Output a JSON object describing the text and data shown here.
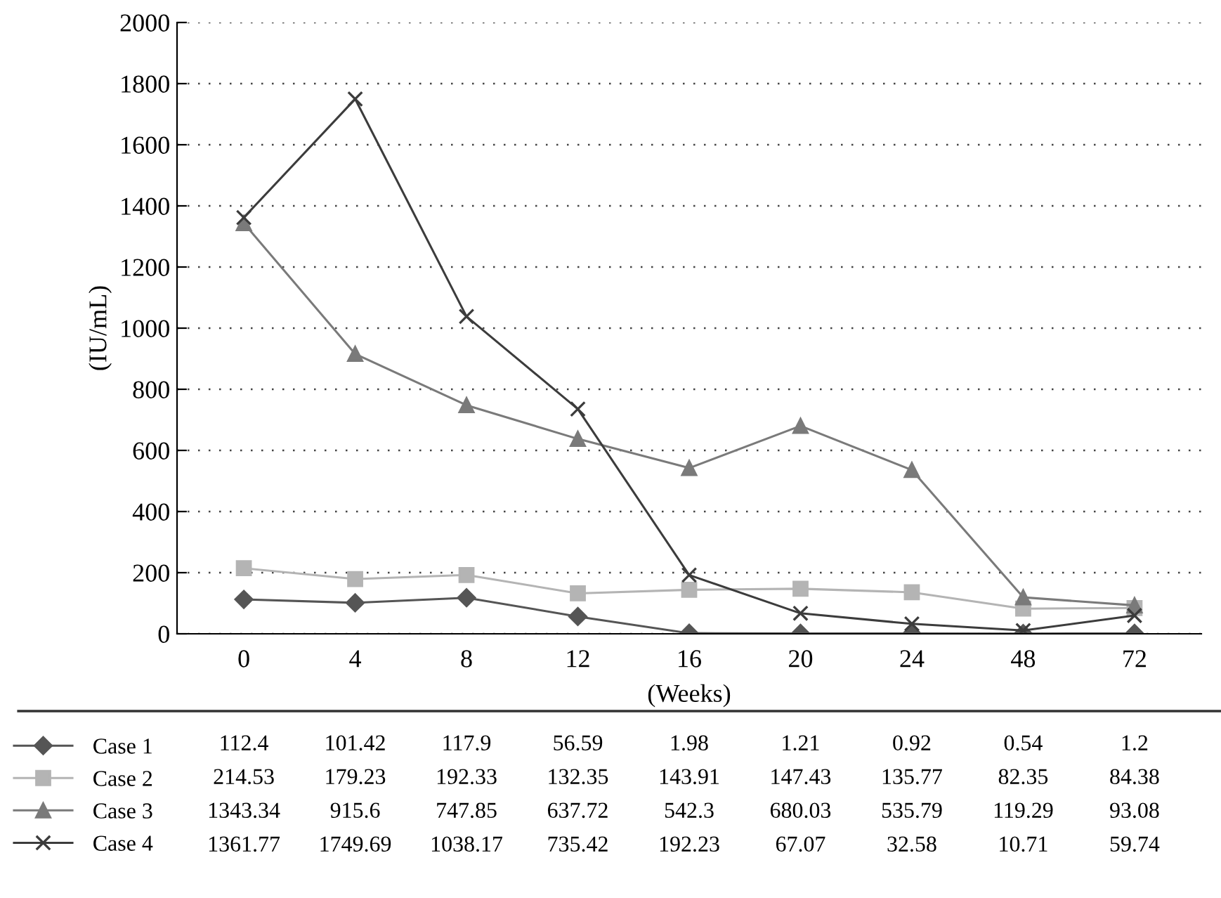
{
  "chart_data": {
    "type": "line",
    "xlabel": "(Weeks)",
    "ylabel": "(IU/mL)",
    "categories": [
      "0",
      "4",
      "8",
      "12",
      "16",
      "20",
      "24",
      "48",
      "72"
    ],
    "ylim": [
      0,
      2000
    ],
    "yticks": [
      0,
      200,
      400,
      600,
      800,
      1000,
      1200,
      1400,
      1600,
      1800,
      2000
    ],
    "grid": "y",
    "legend": "bottom",
    "data_labels": true,
    "line_style": "solid",
    "series": [
      {
        "name": "Case 1",
        "color": "#555555",
        "marker": "diamond",
        "values": [
          112.4,
          101.42,
          117.9,
          56.59,
          1.98,
          1.21,
          0.92,
          0.54,
          1.2
        ]
      },
      {
        "name": "Case 2",
        "color": "#b4b4b4",
        "marker": "square",
        "values": [
          214.53,
          179.23,
          192.33,
          132.35,
          143.91,
          147.43,
          135.77,
          82.35,
          84.38
        ]
      },
      {
        "name": "Case 3",
        "color": "#7a7a7a",
        "marker": "triangle",
        "values": [
          1343.34,
          915.6,
          747.85,
          637.72,
          542.3,
          680.03,
          535.79,
          119.29,
          93.08
        ]
      },
      {
        "name": "Case 4",
        "color": "#3c3c3c",
        "marker": "cross",
        "values": [
          1361.77,
          1749.69,
          1038.17,
          735.42,
          192.23,
          67.07,
          32.58,
          10.71,
          59.74
        ]
      }
    ]
  }
}
